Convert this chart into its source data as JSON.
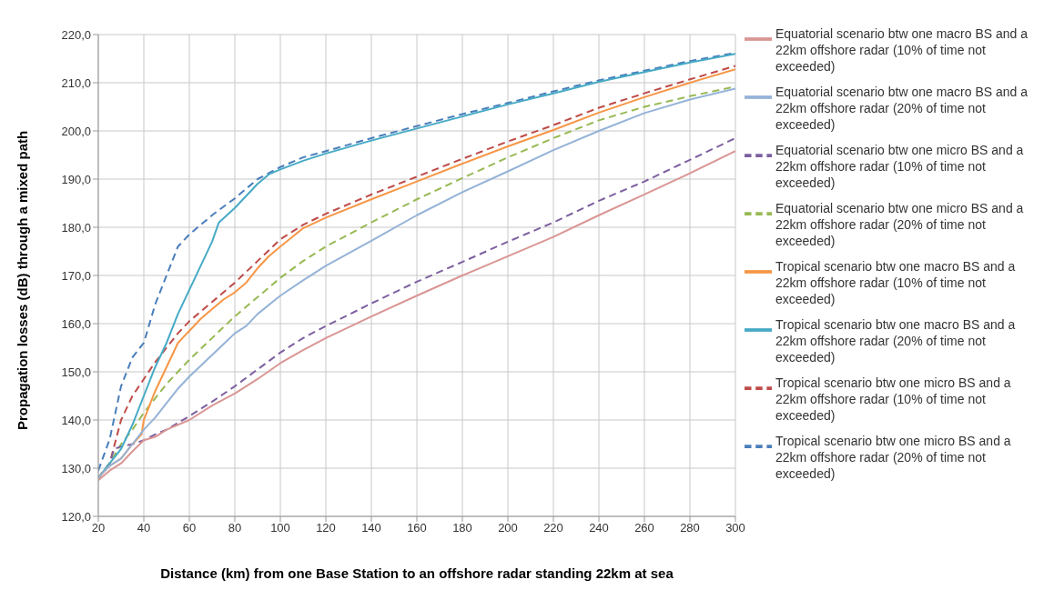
{
  "chart_data": {
    "type": "line",
    "xlabel": "Distance (km) from one Base Station to an offshore radar standing 22km at sea",
    "ylabel": "Propagation losses (dB) through a mixed path",
    "xlim": [
      20,
      300
    ],
    "xticks": [
      20,
      40,
      60,
      80,
      100,
      120,
      140,
      160,
      180,
      200,
      220,
      240,
      260,
      280,
      300
    ],
    "ylim": [
      120,
      220
    ],
    "yticks": [
      {
        "value": 120,
        "label": "120,0"
      },
      {
        "value": 130,
        "label": "130,0"
      },
      {
        "value": 140,
        "label": "140,0"
      },
      {
        "value": 150,
        "label": "150,0"
      },
      {
        "value": 160,
        "label": "160,0"
      },
      {
        "value": 170,
        "label": "170,0"
      },
      {
        "value": 180,
        "label": "180,0"
      },
      {
        "value": 190,
        "label": "190,0"
      },
      {
        "value": 200,
        "label": "200,0"
      },
      {
        "value": 210,
        "label": "210,0"
      },
      {
        "value": 220,
        "label": "220,0"
      }
    ],
    "grid": true,
    "legend": "right",
    "marker": "none",
    "series": [
      {
        "name": "Tropical scenario btw one micro BS and a 22km offshore radar (20% of time not exceeded)",
        "color": "#4a7ebb",
        "line_style": "dashed",
        "x": [
          20,
          25,
          30,
          35,
          40,
          45,
          50,
          55,
          60,
          65,
          70,
          80,
          90,
          100,
          110,
          120,
          140,
          160,
          180,
          200,
          220,
          240,
          260,
          280,
          300
        ],
        "values": [
          129.5,
          136,
          147,
          153,
          156,
          164,
          170,
          176,
          178.5,
          180.5,
          182.5,
          186,
          190,
          192.5,
          194.5,
          195.8,
          198.5,
          201,
          203.5,
          205.8,
          208.2,
          210.5,
          212.5,
          214.5,
          216.2
        ]
      },
      {
        "name": "Tropical scenario btw one micro BS and a 22km offshore radar (10% of time not exceeded)",
        "color": "#be4b48",
        "line_style": "dashed",
        "x": [
          20,
          25,
          30,
          35,
          40,
          45,
          50,
          55,
          60,
          65,
          70,
          80,
          90,
          100,
          110,
          120,
          140,
          160,
          180,
          200,
          220,
          240,
          260,
          280,
          300
        ],
        "values": [
          128,
          131,
          140,
          145,
          148.5,
          152,
          155,
          158,
          160.5,
          162.5,
          164.5,
          168.5,
          173,
          177.5,
          180.5,
          182.8,
          186.8,
          190.5,
          194.2,
          197.8,
          201.2,
          204.8,
          207.8,
          210.7,
          213.5
        ]
      },
      {
        "name": "Equatorial scenario btw one micro BS and a 22km offshore radar (20% of time not exceeded)",
        "color": "#98b954",
        "line_style": "dashed",
        "x": [
          20,
          25,
          30,
          35,
          40,
          45,
          50,
          55,
          60,
          70,
          80,
          90,
          100,
          110,
          120,
          140,
          160,
          180,
          200,
          220,
          240,
          260,
          280,
          300
        ],
        "values": [
          128,
          131,
          135,
          138,
          141.5,
          144.5,
          147.5,
          150,
          152.5,
          157,
          161.5,
          165.5,
          169.5,
          173,
          176,
          181,
          185.8,
          190.2,
          194.5,
          198.5,
          202.2,
          205,
          207.2,
          209.2
        ]
      },
      {
        "name": "Equatorial scenario btw one micro BS and a 22km offshore radar (10% of time not exceeded)",
        "color": "#7d60a0",
        "line_style": "dashed",
        "x": [
          20,
          25,
          27,
          30,
          35,
          40,
          45,
          50,
          60,
          70,
          80,
          90,
          100,
          110,
          120,
          140,
          160,
          180,
          200,
          220,
          240,
          260,
          280,
          300
        ],
        "values": [
          128,
          131,
          134,
          134.5,
          135,
          135.8,
          137,
          138,
          140.8,
          143.8,
          147,
          150.5,
          154,
          157,
          159.5,
          164.2,
          168.7,
          172.8,
          177,
          181,
          185.5,
          189.5,
          194,
          198.5
        ]
      },
      {
        "name": "Tropical scenario btw one macro BS and a 22km offshore radar (20% of time not exceeded)",
        "color": "#46aac5",
        "line_style": "solid",
        "x": [
          20,
          25,
          30,
          35,
          40,
          45,
          50,
          55,
          60,
          65,
          70,
          73,
          80,
          90,
          95,
          100,
          110,
          120,
          140,
          160,
          180,
          200,
          220,
          240,
          260,
          280,
          300
        ],
        "values": [
          128,
          131,
          134,
          139,
          145,
          151,
          156,
          162,
          167,
          172,
          177,
          181,
          184,
          189,
          191,
          192,
          193.8,
          195.3,
          198,
          200.5,
          203,
          205.5,
          207.8,
          210.2,
          212.2,
          214.2,
          216
        ]
      },
      {
        "name": "Tropical scenario btw one macro BS and a 22km offshore radar (10% of time not exceeded)",
        "color": "#f79646",
        "line_style": "solid",
        "x": [
          20,
          25,
          30,
          35,
          39,
          40,
          45,
          50,
          55,
          57,
          60,
          65,
          70,
          75,
          80,
          85,
          90,
          95,
          100,
          110,
          120,
          140,
          160,
          180,
          200,
          220,
          240,
          260,
          280,
          300
        ],
        "values": [
          128,
          130.5,
          132,
          135,
          137,
          140,
          146,
          151,
          156,
          157,
          158.5,
          161,
          163,
          165,
          166.5,
          168.5,
          171.5,
          174,
          176,
          179.8,
          182,
          185.8,
          189.5,
          193.2,
          196.8,
          200.2,
          203.8,
          207,
          210,
          212.8
        ]
      },
      {
        "name": "Equatorial scenario btw one macro BS and a 22km offshore radar (20% of time not exceeded)",
        "color": "#95b3d7",
        "line_style": "solid",
        "x": [
          20,
          25,
          30,
          35,
          40,
          45,
          50,
          55,
          60,
          70,
          80,
          85,
          90,
          100,
          110,
          120,
          140,
          160,
          180,
          200,
          220,
          240,
          260,
          280,
          300
        ],
        "values": [
          128,
          130.5,
          132,
          135,
          138,
          140.5,
          143.5,
          146.5,
          149,
          153.5,
          158,
          159.5,
          162,
          165.8,
          169,
          172,
          177.2,
          182.5,
          187.3,
          191.6,
          196,
          200,
          203.7,
          206.5,
          208.8
        ]
      },
      {
        "name": "Equatorial scenario btw one macro BS and a 22km offshore radar (10% of time not exceeded)",
        "color": "#d99694",
        "line_style": "solid",
        "x": [
          20,
          25,
          30,
          35,
          40,
          45,
          50,
          60,
          70,
          80,
          90,
          100,
          110,
          120,
          140,
          160,
          180,
          200,
          220,
          240,
          260,
          280,
          300
        ],
        "values": [
          127.5,
          129.5,
          131,
          133.5,
          135.8,
          136.5,
          138,
          140,
          143,
          145.5,
          148.5,
          151.8,
          154.5,
          157,
          161.5,
          165.8,
          170,
          174,
          178,
          182.5,
          186.8,
          191.2,
          195.8
        ]
      }
    ]
  }
}
